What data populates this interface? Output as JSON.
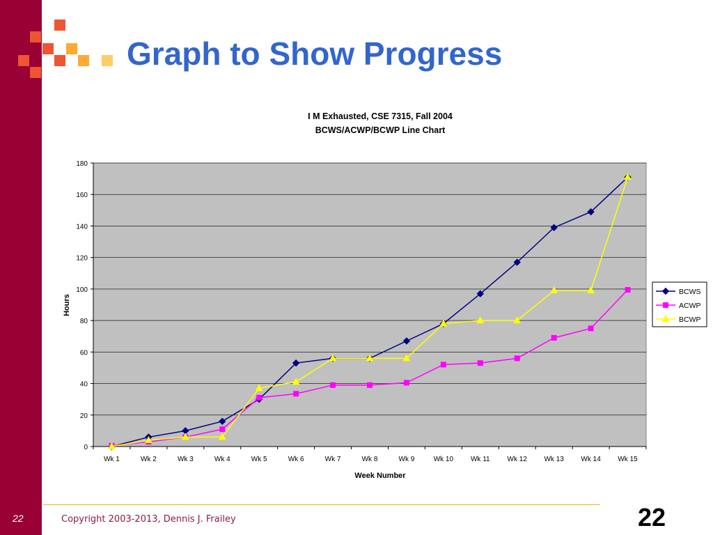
{
  "slide": {
    "title": "Graph to Show Progress",
    "copyright": "Copyright 2003-2013, Dennis J. Frailey",
    "page_number_left": "22",
    "page_number_right": "22",
    "colors": {
      "sidebar": "#990033",
      "title": "#3366cc",
      "plot_background": "#c0c0c0",
      "footer_line": "#f0b400"
    }
  },
  "chart_data": {
    "type": "line",
    "title": "I M Exhausted, CSE 7315, Fall 2004",
    "subtitle": "BCWS/ACWP/BCWP Line Chart",
    "xlabel": "Week Number",
    "ylabel": "Hours",
    "ylim": [
      0,
      180
    ],
    "yticks": [
      0,
      20,
      40,
      60,
      80,
      100,
      120,
      140,
      160,
      180
    ],
    "grid": true,
    "legend_position": "right",
    "categories": [
      "Wk 1",
      "Wk 2",
      "Wk 3",
      "Wk 4",
      "Wk 5",
      "Wk 6",
      "Wk 7",
      "Wk 8",
      "Wk 9",
      "Wk 10",
      "Wk 11",
      "Wk 12",
      "Wk 13",
      "Wk 14",
      "Wk 15"
    ],
    "series": [
      {
        "name": "BCWS",
        "color": "#000080",
        "marker": "diamond",
        "values": [
          0,
          6,
          10,
          16,
          30,
          53,
          56,
          56,
          67,
          78,
          97,
          117,
          139,
          149,
          171
        ]
      },
      {
        "name": "ACWP",
        "color": "#ff00ff",
        "marker": "square",
        "values": [
          0.5,
          3,
          6,
          11,
          31,
          33.5,
          39,
          39,
          40.5,
          52,
          53,
          56,
          69,
          75,
          99.5
        ]
      },
      {
        "name": "BCWP",
        "color": "#ffff00",
        "marker": "triangle",
        "values": [
          0,
          4,
          6,
          6,
          37,
          41,
          56,
          56,
          56,
          78,
          80,
          80,
          99,
          99,
          171
        ]
      }
    ]
  }
}
